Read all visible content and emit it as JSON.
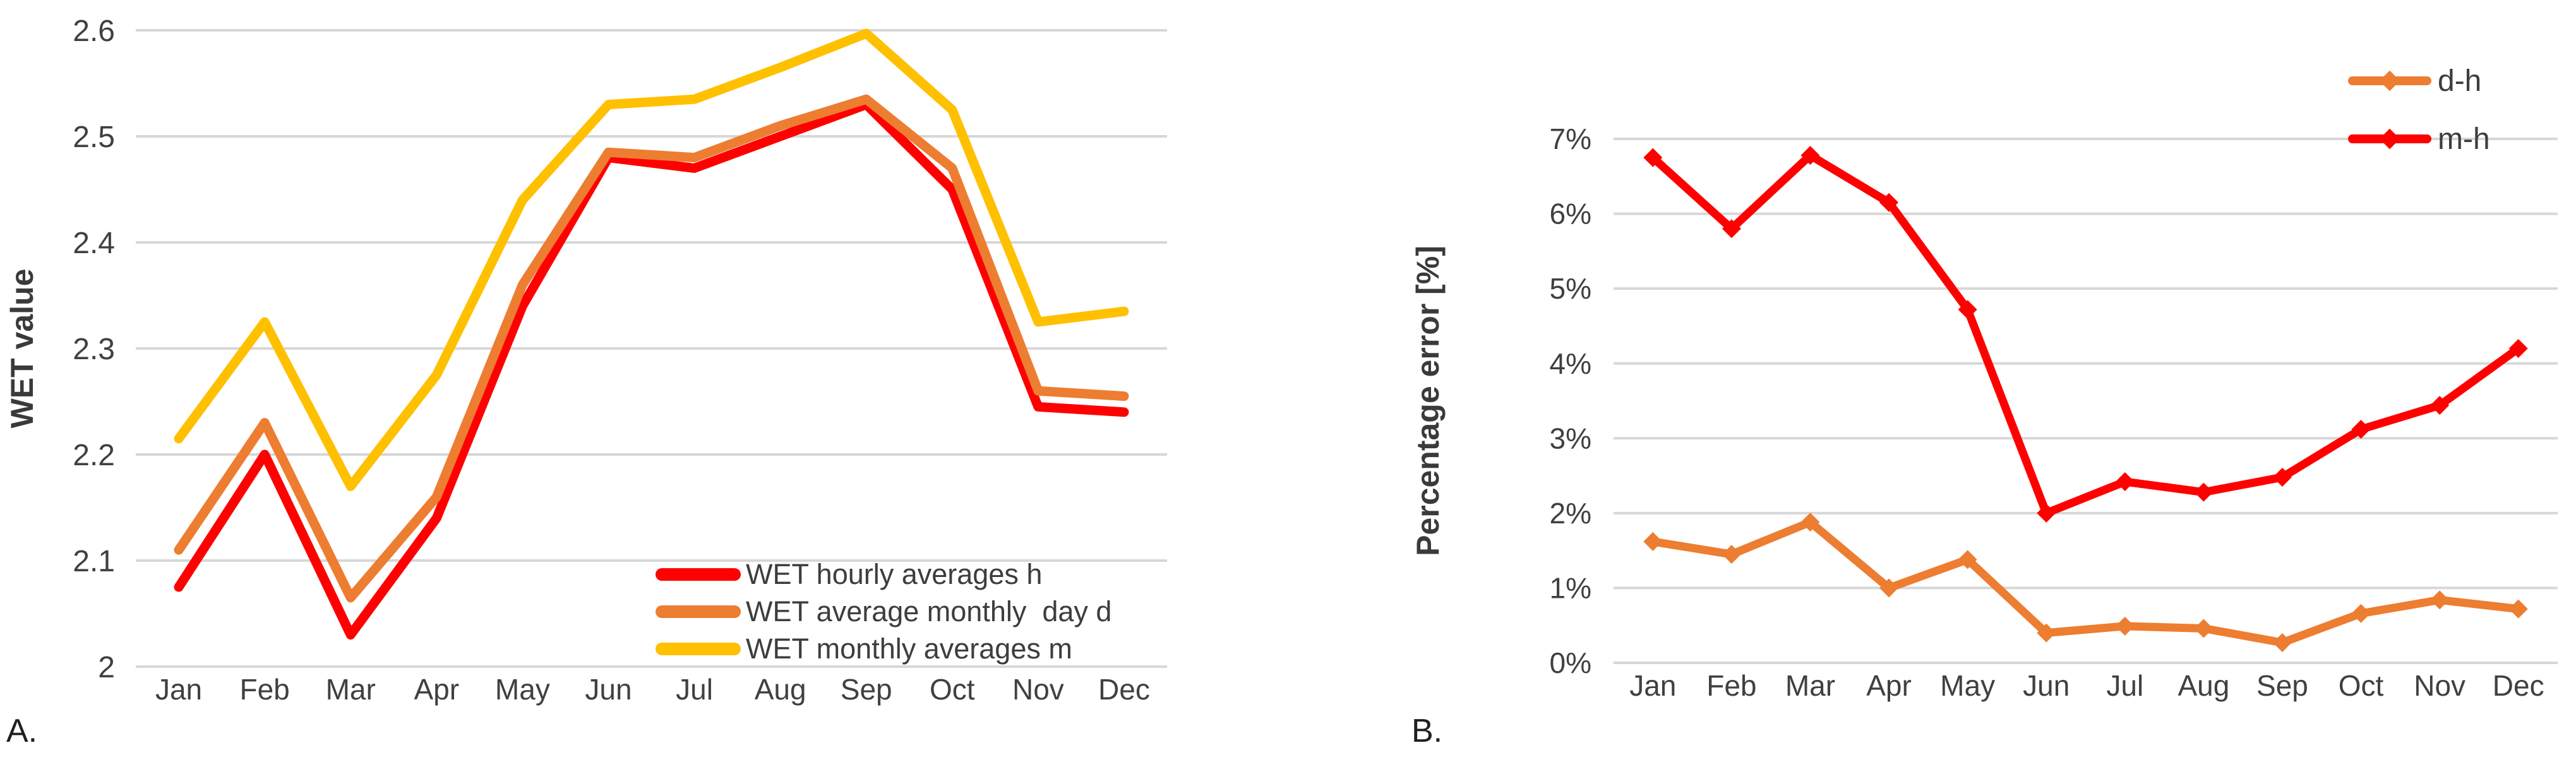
{
  "panel_a": {
    "label": "A."
  },
  "panel_b": {
    "label": "B."
  },
  "colors": {
    "red": "#FF0000",
    "orange": "#ED7D31",
    "yellow": "#FFC000",
    "gridline": "#D7D7D7",
    "tick_text": "#404040",
    "axis_title_text": "#3a3a3a"
  },
  "chart_data": [
    {
      "id": "chart-a",
      "type": "line",
      "title": "",
      "xlabel": "",
      "ylabel": "WET value",
      "categories": [
        "Jan",
        "Feb",
        "Mar",
        "Apr",
        "May",
        "Jun",
        "Jul",
        "Aug",
        "Sep",
        "Oct",
        "Nov",
        "Dec"
      ],
      "ylim": [
        2.0,
        2.6
      ],
      "ytick_step": 0.1,
      "ytick_labels": [
        "2",
        "2.1",
        "2.2",
        "2.3",
        "2.4",
        "2.5",
        "2.6"
      ],
      "grid": true,
      "legend_position": "inside-bottom-right",
      "series": [
        {
          "name": "WET hourly averages h",
          "color": "#FF0000",
          "marker": "none",
          "values": [
            2.075,
            2.2,
            2.03,
            2.14,
            2.34,
            2.48,
            2.47,
            2.5,
            2.53,
            2.45,
            2.245,
            2.24
          ]
        },
        {
          "name": "WET average monthly  day d",
          "color": "#ED7D31",
          "marker": "none",
          "values": [
            2.11,
            2.23,
            2.065,
            2.16,
            2.36,
            2.485,
            2.48,
            2.51,
            2.535,
            2.47,
            2.26,
            2.255
          ]
        },
        {
          "name": "WET monthly averages m",
          "color": "#FFC000",
          "marker": "none",
          "values": [
            2.215,
            2.325,
            2.17,
            2.275,
            2.44,
            2.53,
            2.535,
            2.565,
            2.597,
            2.525,
            2.325,
            2.335
          ]
        }
      ]
    },
    {
      "id": "chart-b",
      "type": "line",
      "title": "",
      "xlabel": "",
      "ylabel": "Percentage error [%]",
      "categories": [
        "Jan",
        "Feb",
        "Mar",
        "Apr",
        "May",
        "Jun",
        "Jul",
        "Aug",
        "Sep",
        "Oct",
        "Nov",
        "Dec"
      ],
      "ylim": [
        0,
        7
      ],
      "ytick_step": 1,
      "ytick_labels": [
        "0%",
        "1%",
        "2%",
        "3%",
        "4%",
        "5%",
        "6%",
        "7%"
      ],
      "grid": true,
      "legend_position": "inside-top-right",
      "series": [
        {
          "name": "d-h",
          "color": "#ED7D31",
          "marker": "diamond",
          "values": [
            1.62,
            1.45,
            1.88,
            1.0,
            1.38,
            0.4,
            0.49,
            0.46,
            0.27,
            0.66,
            0.84,
            0.72
          ]
        },
        {
          "name": "m-h",
          "color": "#FF0000",
          "marker": "diamond",
          "values": [
            6.75,
            5.8,
            6.78,
            6.15,
            4.72,
            2.0,
            2.42,
            2.28,
            2.48,
            3.12,
            3.44,
            4.2
          ]
        }
      ]
    }
  ]
}
